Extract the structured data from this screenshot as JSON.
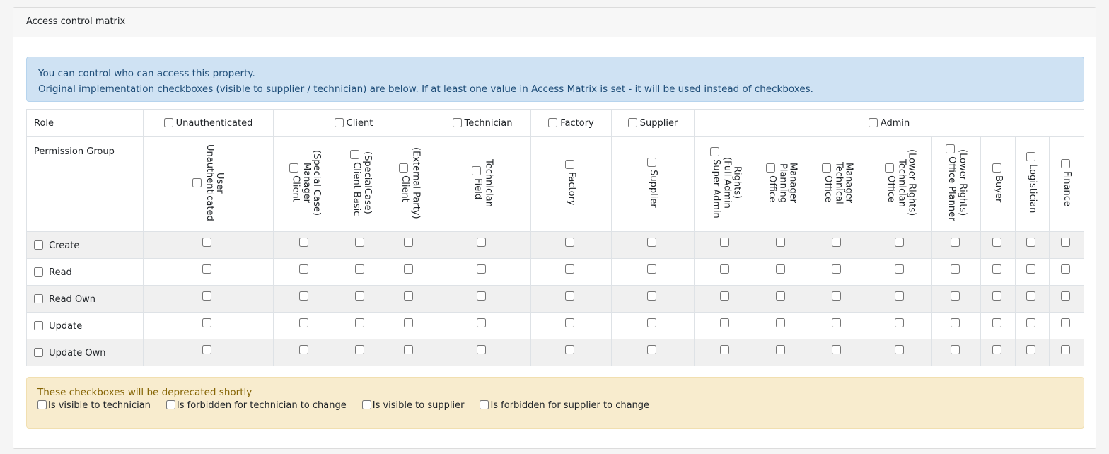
{
  "card": {
    "title": "Access control matrix"
  },
  "info": {
    "line1": "You can control who can access this property.",
    "line2": "Original implementation checkboxes (visible to supplier / technician) are below. If at least one value in Access Matrix is set - it will be used instead of checkboxes."
  },
  "table": {
    "role_label": "Role",
    "permission_group_label": "Permission Group",
    "roles": [
      {
        "label": "Unauthenticated",
        "span": 1
      },
      {
        "label": "Client",
        "span": 3
      },
      {
        "label": "Technician",
        "span": 1
      },
      {
        "label": "Factory",
        "span": 1
      },
      {
        "label": "Supplier",
        "span": 1
      },
      {
        "label": "Admin",
        "span": 8
      }
    ],
    "groups": [
      "Unauthenticated User",
      "Client Manager (Special Case)",
      "Client Basic (SpecialCase)",
      "Client (External Party)",
      "Field Technician",
      "Factory",
      "Supplier",
      "Super Admin (Full Admin Rights)",
      "Office Planning Manager",
      "Office Technical Manager",
      "Office Technician (Lower Rights)",
      "Office Planner (Lower Rights)",
      "Buyer",
      "Logistician",
      "Finance"
    ],
    "permissions": [
      "Create",
      "Read",
      "Read Own",
      "Update",
      "Update Own"
    ]
  },
  "warning": {
    "title": "These checkboxes will be deprecated shortly",
    "options": [
      "Is visible to technician",
      "Is forbidden for technician to change",
      "Is visible to supplier",
      "Is forbidden for supplier to change"
    ]
  },
  "colors": {
    "info_bg": "#cfe2f3",
    "warning_bg": "#f8ecce",
    "warning_text": "#856404"
  }
}
